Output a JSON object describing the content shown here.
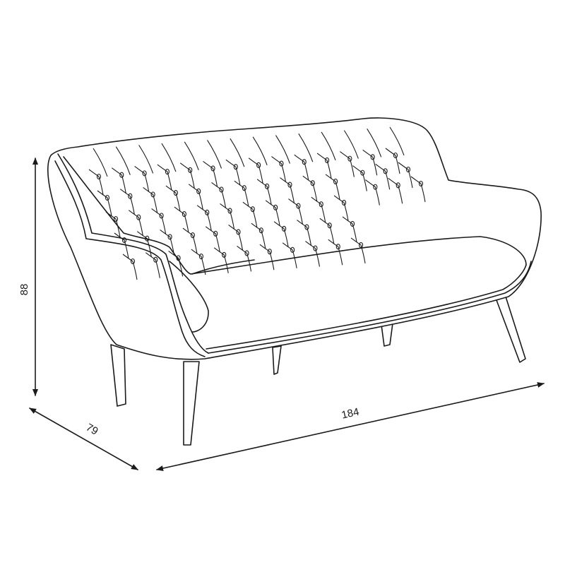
{
  "dimensions": {
    "height": "88",
    "depth": "79",
    "width": "184"
  },
  "colors": {
    "line": "#1a1a1a",
    "background": "#ffffff"
  }
}
